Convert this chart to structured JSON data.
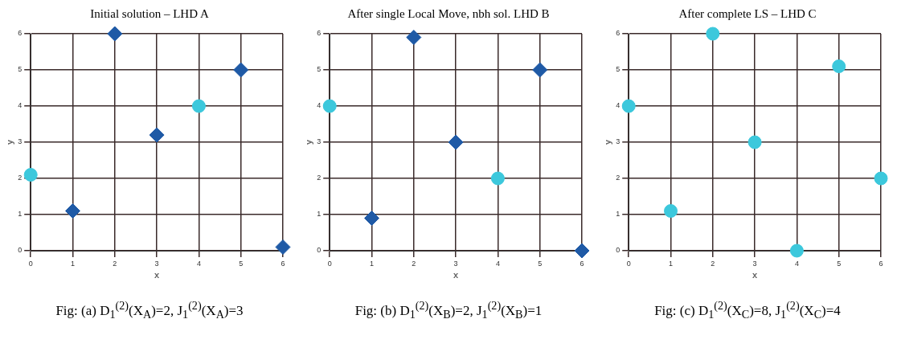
{
  "chart_data": [
    {
      "type": "scatter",
      "title": "Initial solution – LHD A",
      "xlabel": "x",
      "ylabel": "y",
      "xlim": [
        0,
        6
      ],
      "ylim": [
        0,
        6
      ],
      "xticks": [
        0,
        1,
        2,
        3,
        4,
        5,
        6
      ],
      "yticks": [
        0,
        1,
        2,
        3,
        4,
        5,
        6
      ],
      "grid": true,
      "legend": false,
      "annotations": [
        "Fig: (a) D$_{1}$$^{(2)}$(X$_{A}$)=2, J$_{1}$$^{(2)}$(X$_{A}$)=3"
      ],
      "series": [
        {
          "color": "#1f5aa6",
          "marker": "diamond",
          "x": [
            1,
            2,
            3,
            5,
            6
          ],
          "values": [
            1.1,
            6,
            3.2,
            5,
            0.1
          ]
        },
        {
          "color": "#3cc8dc",
          "marker": "circle",
          "x": [
            0,
            4
          ],
          "values": [
            2.1,
            4
          ]
        }
      ]
    },
    {
      "type": "scatter",
      "title": "After single Local Move, nbh sol. LHD B",
      "xlabel": "x",
      "ylabel": "y",
      "xlim": [
        0,
        6
      ],
      "ylim": [
        0,
        6
      ],
      "xticks": [
        0,
        1,
        2,
        3,
        4,
        5,
        6
      ],
      "yticks": [
        0,
        1,
        2,
        3,
        4,
        5,
        6
      ],
      "grid": true,
      "legend": false,
      "annotations": [
        "Fig: (b) D$_{1}$$^{(2)}$(X$_{B}$)=2, J$_{1}$$^{(2)}$(X$_{B}$)=1"
      ],
      "series": [
        {
          "color": "#1f5aa6",
          "marker": "diamond",
          "x": [
            1,
            2,
            3,
            5,
            6
          ],
          "values": [
            0.9,
            5.9,
            3,
            5,
            0
          ]
        },
        {
          "color": "#3cc8dc",
          "marker": "circle",
          "x": [
            0,
            4
          ],
          "values": [
            4,
            2
          ]
        }
      ]
    },
    {
      "type": "scatter",
      "title": "After complete LS – LHD C",
      "xlabel": "x",
      "ylabel": "y",
      "xlim": [
        0,
        6
      ],
      "ylim": [
        0,
        6
      ],
      "xticks": [
        0,
        1,
        2,
        3,
        4,
        5,
        6
      ],
      "yticks": [
        0,
        1,
        2,
        3,
        4,
        5,
        6
      ],
      "grid": true,
      "legend": false,
      "annotations": [
        "Fig: (c) D$_{1}$$^{(2)}$(X$_{C}$)=8, J$_{1}$$^{(2)}$(X$_{C}$)=4"
      ],
      "series": [
        {
          "color": "#3cc8dc",
          "marker": "circle",
          "x": [
            0,
            1,
            2,
            3,
            4,
            5,
            6
          ],
          "values": [
            4,
            1.1,
            6,
            3,
            0,
            5.1,
            2
          ]
        }
      ]
    }
  ]
}
